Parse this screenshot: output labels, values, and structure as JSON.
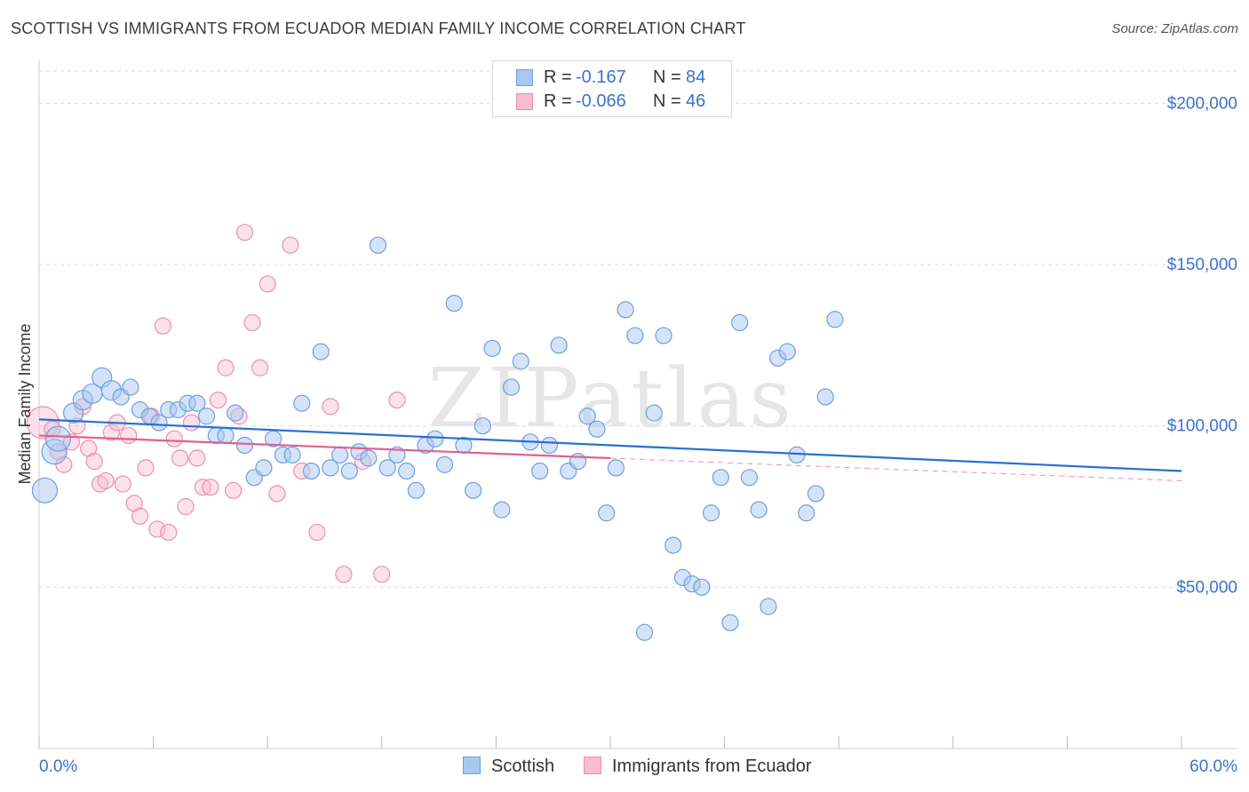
{
  "title": "SCOTTISH VS IMMIGRANTS FROM ECUADOR MEDIAN FAMILY INCOME CORRELATION CHART",
  "source": "Source: ZipAtlas.com",
  "watermark": "ZIPatlas",
  "legend": {
    "rows": [
      {
        "r_label": "R =",
        "r_value": "-0.167",
        "n_label": "N =",
        "n_value": "84"
      },
      {
        "r_label": "R =",
        "r_value": "-0.066",
        "n_label": "N =",
        "n_value": "46"
      }
    ]
  },
  "bottom_legend": {
    "series1": "Scottish",
    "series2": "Immigrants from Ecuador"
  },
  "colors": {
    "scottish_fill": "#a9c8f0",
    "scottish_stroke": "#6f9fe0",
    "scottish_line": "#2a6fd0",
    "ecuador_fill": "#f7bcd0",
    "ecuador_stroke": "#ec8fb0",
    "ecuador_line": "#e0608e",
    "accent_text": "#3c72c8"
  },
  "chart_data": {
    "type": "scatter",
    "title": "SCOTTISH VS IMMIGRANTS FROM ECUADOR MEDIAN FAMILY INCOME CORRELATION CHART",
    "xlabel": "",
    "ylabel": "Median Family Income",
    "xlim": [
      0,
      60
    ],
    "ylim": [
      0,
      210000
    ],
    "x_tick_labels": [
      "0.0%",
      "60.0%"
    ],
    "y_ticks": [
      50000,
      100000,
      150000,
      200000
    ],
    "y_tick_labels": [
      "$50,000",
      "$100,000",
      "$150,000",
      "$200,000"
    ],
    "grid": true,
    "series": [
      {
        "name": "Scottish",
        "r": -0.167,
        "n": 84,
        "trend": {
          "x": [
            0,
            60
          ],
          "y": [
            102000,
            86000
          ]
        },
        "points": [
          [
            0.3,
            80000
          ],
          [
            0.8,
            92000
          ],
          [
            1.0,
            96000
          ],
          [
            1.8,
            104000
          ],
          [
            2.3,
            108000
          ],
          [
            2.8,
            110000
          ],
          [
            3.3,
            115000
          ],
          [
            3.8,
            111000
          ],
          [
            4.3,
            109000
          ],
          [
            4.8,
            112000
          ],
          [
            5.3,
            105000
          ],
          [
            5.8,
            103000
          ],
          [
            6.3,
            101000
          ],
          [
            6.8,
            105000
          ],
          [
            7.3,
            105000
          ],
          [
            7.8,
            107000
          ],
          [
            8.3,
            107000
          ],
          [
            8.8,
            103000
          ],
          [
            9.3,
            97000
          ],
          [
            9.8,
            97000
          ],
          [
            10.3,
            104000
          ],
          [
            10.8,
            94000
          ],
          [
            11.3,
            84000
          ],
          [
            11.8,
            87000
          ],
          [
            12.3,
            96000
          ],
          [
            12.8,
            91000
          ],
          [
            13.3,
            91000
          ],
          [
            13.8,
            107000
          ],
          [
            14.3,
            86000
          ],
          [
            14.8,
            123000
          ],
          [
            15.3,
            87000
          ],
          [
            15.8,
            91000
          ],
          [
            16.3,
            86000
          ],
          [
            16.8,
            92000
          ],
          [
            17.3,
            90000
          ],
          [
            17.8,
            156000
          ],
          [
            18.3,
            87000
          ],
          [
            18.8,
            91000
          ],
          [
            19.3,
            86000
          ],
          [
            19.8,
            80000
          ],
          [
            20.3,
            94000
          ],
          [
            20.8,
            96000
          ],
          [
            21.3,
            88000
          ],
          [
            21.8,
            138000
          ],
          [
            22.3,
            94000
          ],
          [
            22.8,
            80000
          ],
          [
            23.3,
            100000
          ],
          [
            23.8,
            124000
          ],
          [
            24.3,
            74000
          ],
          [
            24.8,
            112000
          ],
          [
            25.3,
            120000
          ],
          [
            25.8,
            95000
          ],
          [
            26.3,
            86000
          ],
          [
            26.8,
            94000
          ],
          [
            27.3,
            125000
          ],
          [
            27.8,
            86000
          ],
          [
            28.3,
            89000
          ],
          [
            28.8,
            103000
          ],
          [
            29.3,
            99000
          ],
          [
            29.8,
            73000
          ],
          [
            30.3,
            87000
          ],
          [
            30.8,
            136000
          ],
          [
            31.3,
            128000
          ],
          [
            31.8,
            36000
          ],
          [
            32.3,
            104000
          ],
          [
            32.8,
            128000
          ],
          [
            33.3,
            63000
          ],
          [
            33.8,
            53000
          ],
          [
            34.3,
            51000
          ],
          [
            34.8,
            50000
          ],
          [
            35.3,
            73000
          ],
          [
            35.8,
            84000
          ],
          [
            36.3,
            39000
          ],
          [
            36.8,
            132000
          ],
          [
            37.3,
            84000
          ],
          [
            37.8,
            74000
          ],
          [
            38.3,
            44000
          ],
          [
            38.8,
            121000
          ],
          [
            39.3,
            123000
          ],
          [
            39.8,
            91000
          ],
          [
            40.3,
            73000
          ],
          [
            40.8,
            79000
          ],
          [
            41.3,
            109000
          ],
          [
            41.8,
            133000
          ]
        ]
      },
      {
        "name": "Immigrants from Ecuador",
        "r": -0.066,
        "n": 46,
        "trend": {
          "x": [
            0,
            30
          ],
          "y": [
            97000,
            90000
          ]
        },
        "trend_dashed": {
          "x": [
            30,
            60
          ],
          "y": [
            90000,
            83000
          ]
        },
        "points": [
          [
            0.2,
            101000
          ],
          [
            0.7,
            99000
          ],
          [
            1.0,
            92000
          ],
          [
            1.3,
            88000
          ],
          [
            1.7,
            95000
          ],
          [
            2.0,
            100000
          ],
          [
            2.3,
            106000
          ],
          [
            2.6,
            93000
          ],
          [
            2.9,
            89000
          ],
          [
            3.2,
            82000
          ],
          [
            3.5,
            83000
          ],
          [
            3.8,
            98000
          ],
          [
            4.1,
            101000
          ],
          [
            4.4,
            82000
          ],
          [
            4.7,
            97000
          ],
          [
            5.0,
            76000
          ],
          [
            5.3,
            72000
          ],
          [
            5.6,
            87000
          ],
          [
            5.9,
            103000
          ],
          [
            6.2,
            68000
          ],
          [
            6.5,
            131000
          ],
          [
            6.8,
            67000
          ],
          [
            7.1,
            96000
          ],
          [
            7.4,
            90000
          ],
          [
            7.7,
            75000
          ],
          [
            8.0,
            101000
          ],
          [
            8.3,
            90000
          ],
          [
            8.6,
            81000
          ],
          [
            9.0,
            81000
          ],
          [
            9.4,
            108000
          ],
          [
            9.8,
            118000
          ],
          [
            10.2,
            80000
          ],
          [
            10.5,
            103000
          ],
          [
            10.8,
            160000
          ],
          [
            11.2,
            132000
          ],
          [
            11.6,
            118000
          ],
          [
            12.0,
            144000
          ],
          [
            12.5,
            79000
          ],
          [
            13.2,
            156000
          ],
          [
            13.8,
            86000
          ],
          [
            14.6,
            67000
          ],
          [
            15.3,
            106000
          ],
          [
            16.0,
            54000
          ],
          [
            17.0,
            89000
          ],
          [
            18.0,
            54000
          ],
          [
            18.8,
            108000
          ]
        ]
      }
    ]
  }
}
